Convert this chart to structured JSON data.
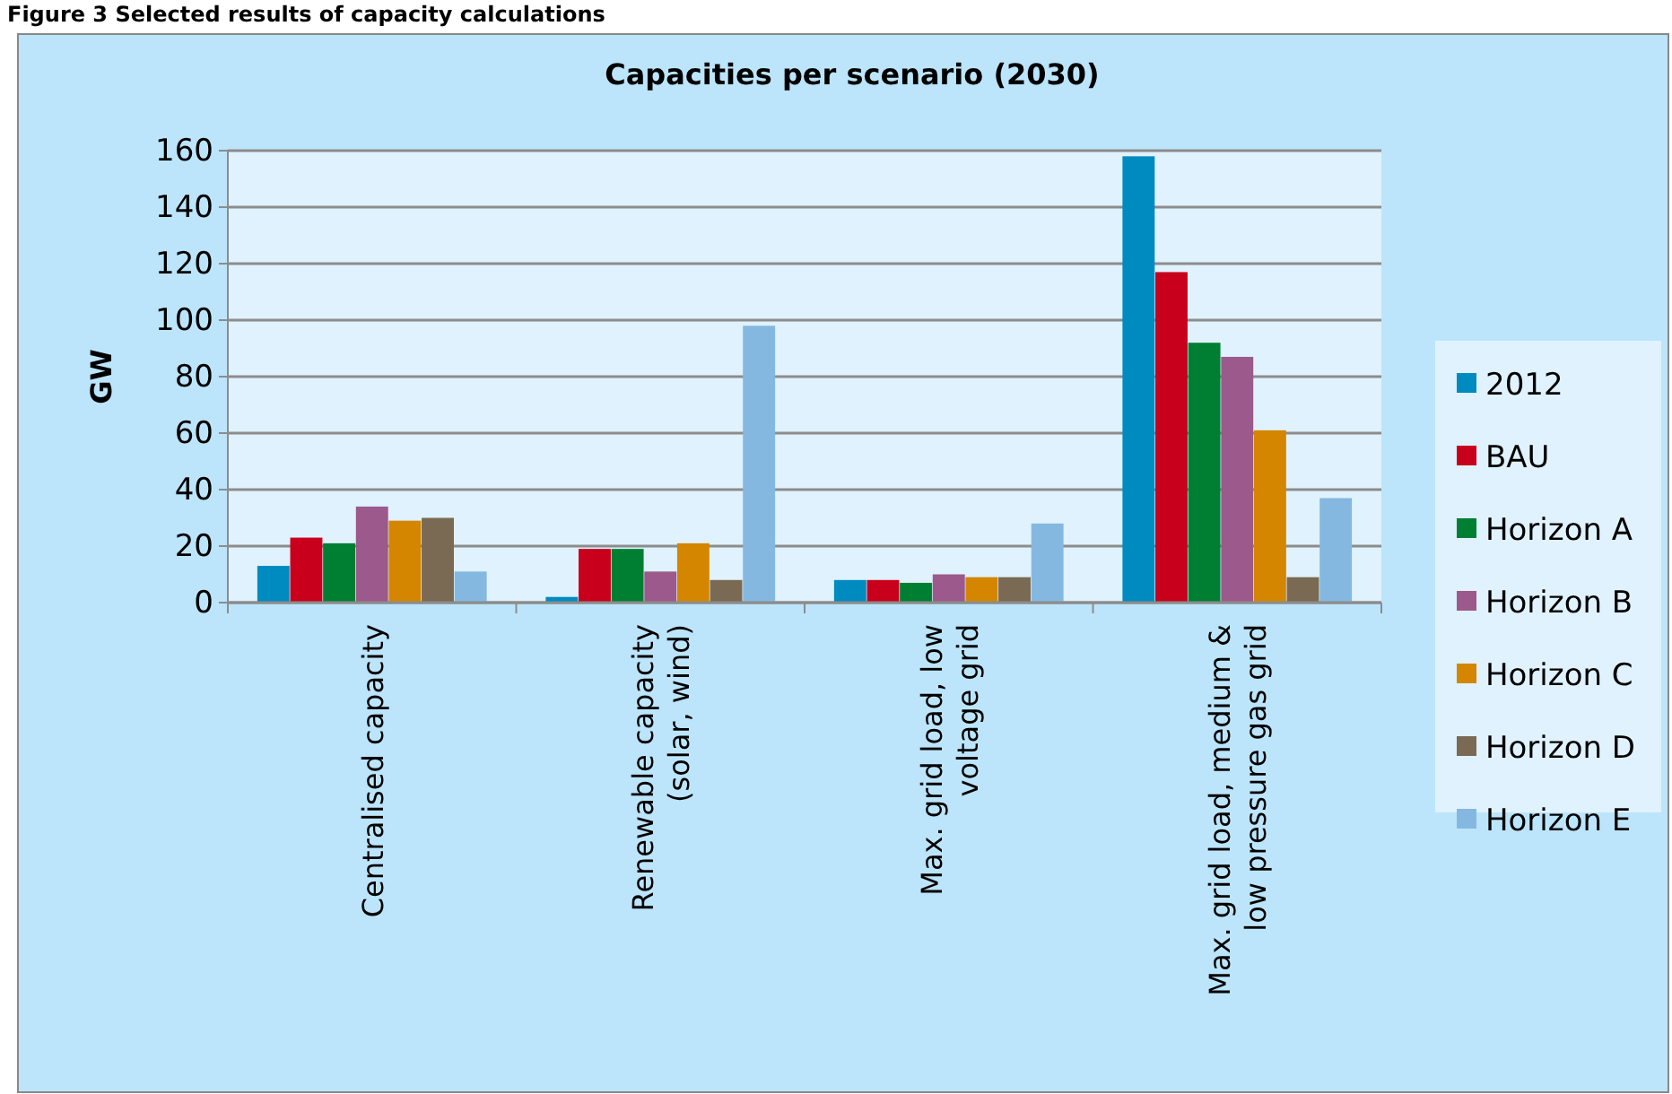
{
  "chart_data": {
    "type": "bar",
    "title": "Capacities per scenario (2030)",
    "ylabel": "GW",
    "annotations": [
      "Figure 3 Selected results of capacity calculations"
    ],
    "categories": [
      "Centralised capacity",
      "Renewable capacity (solar, wind)",
      "Max. grid load, low voltage grid",
      "Max. grid load, medium & low pressure gas grid"
    ],
    "series": [
      {
        "name": "2012",
        "color": "#008bc0",
        "values": [
          13,
          2,
          8,
          158
        ]
      },
      {
        "name": "BAU",
        "color": "#c8001c",
        "values": [
          23,
          19,
          8,
          117
        ]
      },
      {
        "name": "Horizon A",
        "color": "#007f33",
        "values": [
          21,
          19,
          7,
          92
        ]
      },
      {
        "name": "Horizon B",
        "color": "#9b5a8b",
        "values": [
          34,
          11,
          10,
          87
        ]
      },
      {
        "name": "Horizon C",
        "color": "#d48600",
        "values": [
          29,
          21,
          9,
          61
        ]
      },
      {
        "name": "Horizon D",
        "color": "#7a6a53",
        "values": [
          30,
          8,
          9,
          9
        ]
      },
      {
        "name": "Horizon E",
        "color": "#85b8e0",
        "values": [
          11,
          98,
          28,
          37
        ]
      }
    ],
    "ylim": [
      0,
      160
    ],
    "yticks": [
      0,
      20,
      40,
      60,
      80,
      100,
      120,
      140,
      160
    ],
    "grid": "y",
    "legend": "right"
  }
}
